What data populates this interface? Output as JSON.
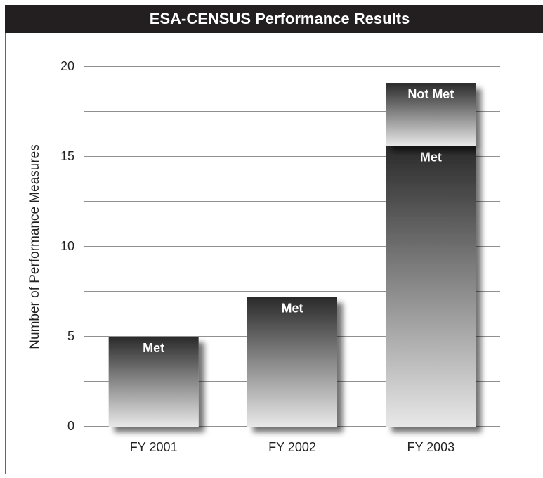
{
  "chart_data": {
    "type": "stacked_bar",
    "title": "ESA-CENSUS Performance Results",
    "y_label": "Number of Performance Measures",
    "categories": [
      "FY 2001",
      "FY 2002",
      "FY 2003"
    ],
    "series": [
      {
        "name": "Met",
        "color": "#333333",
        "values": [
          5,
          7.2,
          15.6
        ]
      },
      {
        "name": "Not Met",
        "color": "#444444",
        "values": [
          null,
          null,
          3.5
        ]
      }
    ],
    "ylim": [
      0,
      20
    ],
    "yticks": [
      0,
      5,
      10,
      15,
      20
    ],
    "minor_yticks": [
      2.5,
      7.5,
      12.5,
      17.5
    ],
    "grid": true
  }
}
